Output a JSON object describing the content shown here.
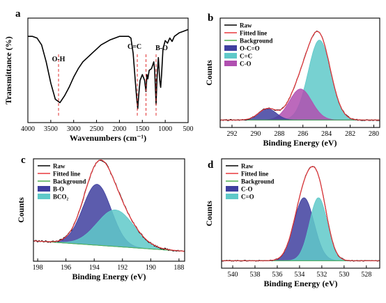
{
  "colors": {
    "raw": "#000000",
    "fit": "#e8383d",
    "background": "#4caf50",
    "blue_fill": "#3f3f9f",
    "cyan_fill": "#5fc9c9",
    "pink_fill": "#b04fb0",
    "sky_fill": "#22bde8",
    "vline": "#e03030"
  },
  "chart_data": [
    {
      "panel": "a",
      "type": "line",
      "xlabel": "Wavenumbers (cm⁻¹)",
      "ylabel": "Transmittance (%)",
      "xlim": [
        4000,
        500
      ],
      "x_reversed": true,
      "xticks": [
        4000,
        3500,
        3000,
        2500,
        2000,
        1500,
        1000,
        500
      ],
      "grid": false,
      "annotations": [
        {
          "text": "O-H",
          "x": 3330
        },
        {
          "text": "C=C",
          "x": 1610
        },
        {
          "text": "B-O",
          "x": 1200
        }
      ],
      "vlines": [
        3330,
        1610,
        1420,
        1200
      ],
      "series": [
        {
          "role": "raw",
          "x": [
            4000,
            3900,
            3800,
            3700,
            3600,
            3500,
            3400,
            3300,
            3200,
            3100,
            3000,
            2900,
            2800,
            2600,
            2400,
            2200,
            2000,
            1900,
            1800,
            1750,
            1700,
            1650,
            1620,
            1600,
            1580,
            1550,
            1500,
            1450,
            1420,
            1400,
            1380,
            1350,
            1300,
            1250,
            1230,
            1200,
            1180,
            1150,
            1120,
            1100,
            1080,
            1050,
            1000,
            950,
            900,
            850,
            800,
            700,
            600,
            500
          ],
          "y": [
            0.1,
            0.1,
            0.12,
            0.2,
            0.4,
            0.65,
            0.84,
            0.88,
            0.8,
            0.7,
            0.58,
            0.48,
            0.4,
            0.3,
            0.2,
            0.14,
            0.1,
            0.1,
            0.1,
            0.12,
            0.3,
            0.65,
            0.85,
            0.95,
            0.8,
            0.62,
            0.55,
            0.62,
            0.75,
            0.55,
            0.6,
            0.5,
            0.48,
            0.4,
            0.5,
            0.9,
            0.6,
            0.35,
            0.62,
            0.7,
            0.55,
            0.25,
            0.15,
            0.18,
            0.12,
            0.16,
            0.1,
            0.06,
            0.04,
            0.02
          ]
        }
      ]
    },
    {
      "panel": "b",
      "type": "area",
      "xlabel": "Binding Energy (eV)",
      "ylabel": "Counts",
      "xlim": [
        293,
        279.5
      ],
      "x_reversed": true,
      "xticks": [
        292,
        290,
        288,
        286,
        284,
        282,
        280
      ],
      "grid": false,
      "legend": "top-left",
      "series": [
        {
          "name": "Raw",
          "role": "raw",
          "style": "line"
        },
        {
          "name": "Fitted line",
          "role": "fit",
          "style": "line"
        },
        {
          "name": "Background",
          "role": "background",
          "style": "line"
        },
        {
          "name": "O-C=O",
          "role": "blue_fill",
          "style": "fill",
          "center": 289.0,
          "height": 0.12,
          "sigma": 0.75
        },
        {
          "name": "C=C",
          "role": "cyan_fill",
          "style": "fill",
          "center": 284.6,
          "height": 0.85,
          "sigma": 0.95
        },
        {
          "name": "C-O",
          "role": "pink_fill",
          "style": "fill",
          "center": 286.2,
          "height": 0.33,
          "sigma": 0.95
        }
      ]
    },
    {
      "panel": "c",
      "type": "area",
      "xlabel": "Binding Energy (eV)",
      "ylabel": "Counts",
      "xlim": [
        198.3,
        187.6
      ],
      "x_reversed": true,
      "xticks": [
        198,
        196,
        194,
        192,
        190,
        188
      ],
      "grid": false,
      "legend": "top-left",
      "series": [
        {
          "name": "Raw",
          "role": "raw",
          "style": "line"
        },
        {
          "name": "Fitted line",
          "role": "fit",
          "style": "line"
        },
        {
          "name": "Background",
          "role": "background",
          "style": "line"
        },
        {
          "name": "B-O",
          "role": "blue_fill",
          "style": "fill",
          "center": 193.8,
          "height": 0.7,
          "sigma": 1.0
        },
        {
          "name": "BCO₂",
          "role": "cyan_fill",
          "style": "fill",
          "center": 192.5,
          "height": 0.42,
          "sigma": 1.3
        }
      ]
    },
    {
      "panel": "d",
      "type": "area",
      "xlabel": "Binding Energy (eV)",
      "ylabel": "Counts",
      "xlim": [
        541,
        526.8
      ],
      "x_reversed": true,
      "xticks": [
        540,
        538,
        536,
        534,
        532,
        530,
        528
      ],
      "grid": false,
      "legend": "top-left",
      "series": [
        {
          "name": "Raw",
          "role": "raw",
          "style": "line"
        },
        {
          "name": "Fitted line",
          "role": "fit",
          "style": "line"
        },
        {
          "name": "Background",
          "role": "background",
          "style": "line"
        },
        {
          "name": "C-O",
          "role": "blue_fill",
          "style": "fill",
          "center": 533.6,
          "height": 0.67,
          "sigma": 0.9
        },
        {
          "name": "C=O",
          "role": "cyan_fill",
          "style": "fill",
          "center": 532.3,
          "height": 0.67,
          "sigma": 0.8
        }
      ]
    }
  ]
}
